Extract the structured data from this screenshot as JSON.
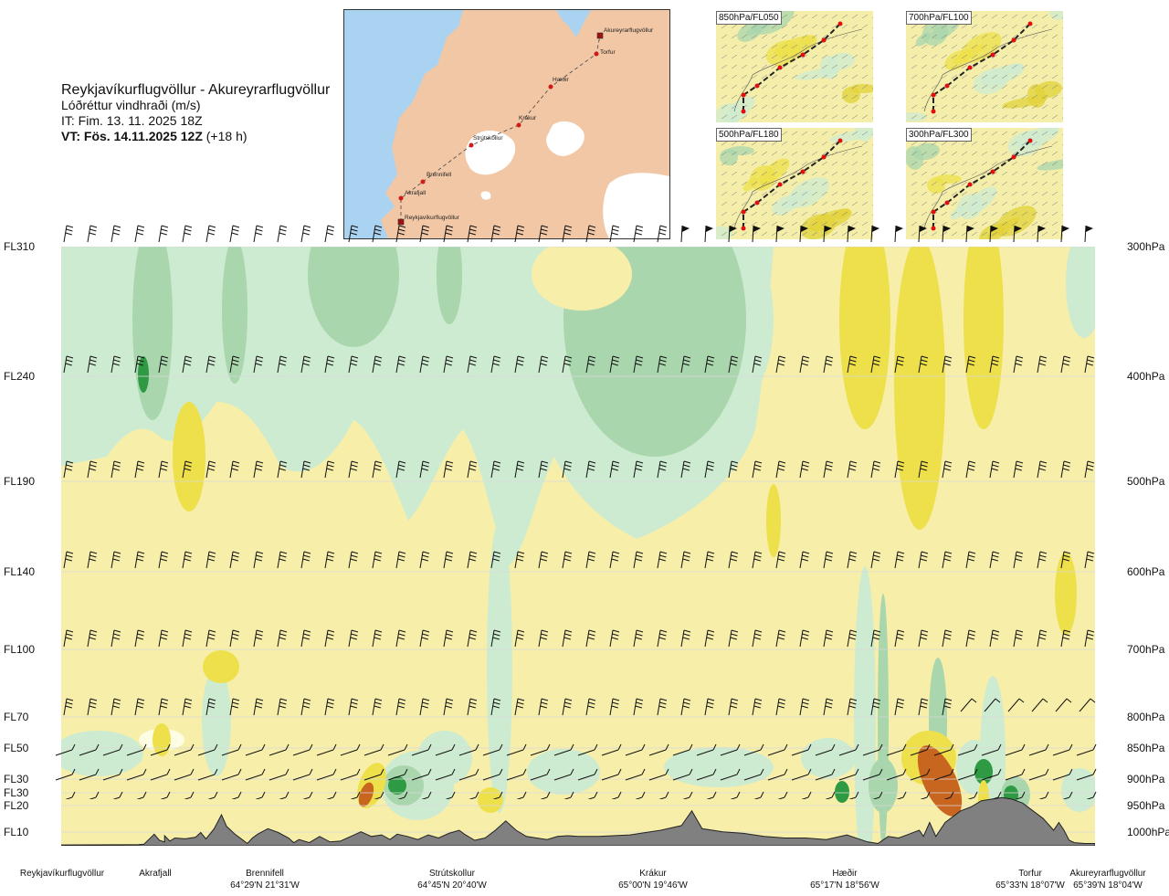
{
  "title": {
    "route": "Reykjavíkurflugvöllur - Akureyrarflugvöllur",
    "variable": "Lóðréttur vindhraði (m/s)",
    "it": "IT: Fim. 13. 11. 2025 18Z",
    "vt_bold": "VT: Fös. 14.11.2025 12Z",
    "vt_rest": "(+18 h)"
  },
  "levels": [
    {
      "fl": "FL310",
      "hpa": "300hPa"
    },
    {
      "fl": "FL240",
      "hpa": "400hPa"
    },
    {
      "fl": "FL190",
      "hpa": "500hPa"
    },
    {
      "fl": "FL140",
      "hpa": "600hPa"
    },
    {
      "fl": "FL100",
      "hpa": "700hPa"
    },
    {
      "fl": "FL70",
      "hpa": "800hPa"
    },
    {
      "fl": "FL50",
      "hpa": "850hPa"
    },
    {
      "fl": "FL30",
      "hpa": "900hPa"
    },
    {
      "fl": "FL30",
      "hpa": ""
    },
    {
      "fl": "FL20",
      "hpa": "950hPa"
    },
    {
      "fl": "FL10",
      "hpa": "1000hPa"
    }
  ],
  "locations": [
    {
      "name": "Reykjavíkurflugvöllur",
      "coord": ""
    },
    {
      "name": "Akrafjall",
      "coord": ""
    },
    {
      "name": "Brennifell",
      "coord": "64°29'N 21°31'W"
    },
    {
      "name": "Strútskollur",
      "coord": "64°45'N 20°40'W"
    },
    {
      "name": "Krákur",
      "coord": "65°00'N 19°46'W"
    },
    {
      "name": "Hæðir",
      "coord": "65°17'N 18°56'W"
    },
    {
      "name": "Torfur",
      "coord": "65°33'N 18°07'W"
    },
    {
      "name": "Akureyrarflugvöllur",
      "coord": "65°39'N 18°04'W"
    }
  ],
  "map": {
    "labels": [
      "Akureyrarflugvöllur",
      "Torfur",
      "Hæðir",
      "Krákur",
      "Strútskollur",
      "Brennifell",
      "Akrafjall",
      "Reykjavíkurflugvöllur"
    ],
    "land_color": "#f2c7a5",
    "sea_color": "#a9d3f0",
    "glacier_color": "#ffffff"
  },
  "insets": [
    {
      "label": "850hPa/FL050"
    },
    {
      "label": "700hPa/FL100"
    },
    {
      "label": "500hPa/FL180"
    },
    {
      "label": "300hPa/FL300"
    }
  ],
  "chart_data": {
    "type": "heatmap",
    "colors": {
      "weak_down": "#cdebd0",
      "moderate_down": "#a9d6ad",
      "strong_down": "#2e9a44",
      "weak_up": "#f7eeaa",
      "moderate_up": "#eee04a",
      "strong_up": "#c8661f",
      "neutral": "#fdfde3",
      "terrain": "#808080"
    },
    "terrain_profile": [
      [
        0,
        0.01
      ],
      [
        0.075,
        0.015
      ],
      [
        0.08,
        0.02
      ],
      [
        0.09,
        0.15
      ],
      [
        0.095,
        0.07
      ],
      [
        0.1,
        0.05
      ],
      [
        0.1,
        0.13
      ],
      [
        0.105,
        0.06
      ],
      [
        0.11,
        0.1
      ],
      [
        0.12,
        0.09
      ],
      [
        0.13,
        0.11
      ],
      [
        0.135,
        0.17
      ],
      [
        0.14,
        0.09
      ],
      [
        0.148,
        0.22
      ],
      [
        0.155,
        0.4
      ],
      [
        0.16,
        0.25
      ],
      [
        0.168,
        0.15
      ],
      [
        0.175,
        0.08
      ],
      [
        0.18,
        0.03
      ],
      [
        0.185,
        0.1
      ],
      [
        0.19,
        0.15
      ],
      [
        0.2,
        0.22
      ],
      [
        0.21,
        0.17
      ],
      [
        0.22,
        0.1
      ],
      [
        0.225,
        0.04
      ],
      [
        0.23,
        0.08
      ],
      [
        0.24,
        0.04
      ],
      [
        0.25,
        0.12
      ],
      [
        0.26,
        0.05
      ],
      [
        0.27,
        0.06
      ],
      [
        0.28,
        0.12
      ],
      [
        0.29,
        0.18
      ],
      [
        0.3,
        0.12
      ],
      [
        0.31,
        0.14
      ],
      [
        0.318,
        0.08
      ],
      [
        0.325,
        0.15
      ],
      [
        0.335,
        0.12
      ],
      [
        0.345,
        0.08
      ],
      [
        0.355,
        0.14
      ],
      [
        0.365,
        0.1
      ],
      [
        0.375,
        0.16
      ],
      [
        0.385,
        0.2
      ],
      [
        0.39,
        0.15
      ],
      [
        0.4,
        0.07
      ],
      [
        0.41,
        0.1
      ],
      [
        0.42,
        0.2
      ],
      [
        0.43,
        0.32
      ],
      [
        0.44,
        0.2
      ],
      [
        0.45,
        0.12
      ],
      [
        0.46,
        0.1
      ],
      [
        0.47,
        0.08
      ],
      [
        0.48,
        0.12
      ],
      [
        0.49,
        0.13
      ],
      [
        0.5,
        0.12
      ],
      [
        0.52,
        0.12
      ],
      [
        0.55,
        0.14
      ],
      [
        0.58,
        0.2
      ],
      [
        0.6,
        0.26
      ],
      [
        0.61,
        0.45
      ],
      [
        0.62,
        0.22
      ],
      [
        0.64,
        0.18
      ],
      [
        0.66,
        0.16
      ],
      [
        0.68,
        0.12
      ],
      [
        0.7,
        0.1
      ],
      [
        0.72,
        0.1
      ],
      [
        0.74,
        0.08
      ],
      [
        0.76,
        0.14
      ],
      [
        0.78,
        0.05
      ],
      [
        0.79,
        0.03
      ],
      [
        0.8,
        0.12
      ],
      [
        0.81,
        0.1
      ],
      [
        0.82,
        0.15
      ],
      [
        0.83,
        0.2
      ],
      [
        0.834,
        0.12
      ],
      [
        0.84,
        0.3
      ],
      [
        0.846,
        0.12
      ],
      [
        0.855,
        0.3
      ],
      [
        0.86,
        0.35
      ],
      [
        0.87,
        0.45
      ],
      [
        0.88,
        0.5
      ],
      [
        0.89,
        0.58
      ],
      [
        0.9,
        0.6
      ],
      [
        0.91,
        0.62
      ],
      [
        0.92,
        0.6
      ],
      [
        0.93,
        0.55
      ],
      [
        0.94,
        0.45
      ],
      [
        0.95,
        0.35
      ],
      [
        0.96,
        0.2
      ],
      [
        0.965,
        0.3
      ],
      [
        0.97,
        0.2
      ],
      [
        0.975,
        0.07
      ],
      [
        0.98,
        0.04
      ],
      [
        0.99,
        0.03
      ],
      [
        1,
        0.03
      ]
    ]
  }
}
